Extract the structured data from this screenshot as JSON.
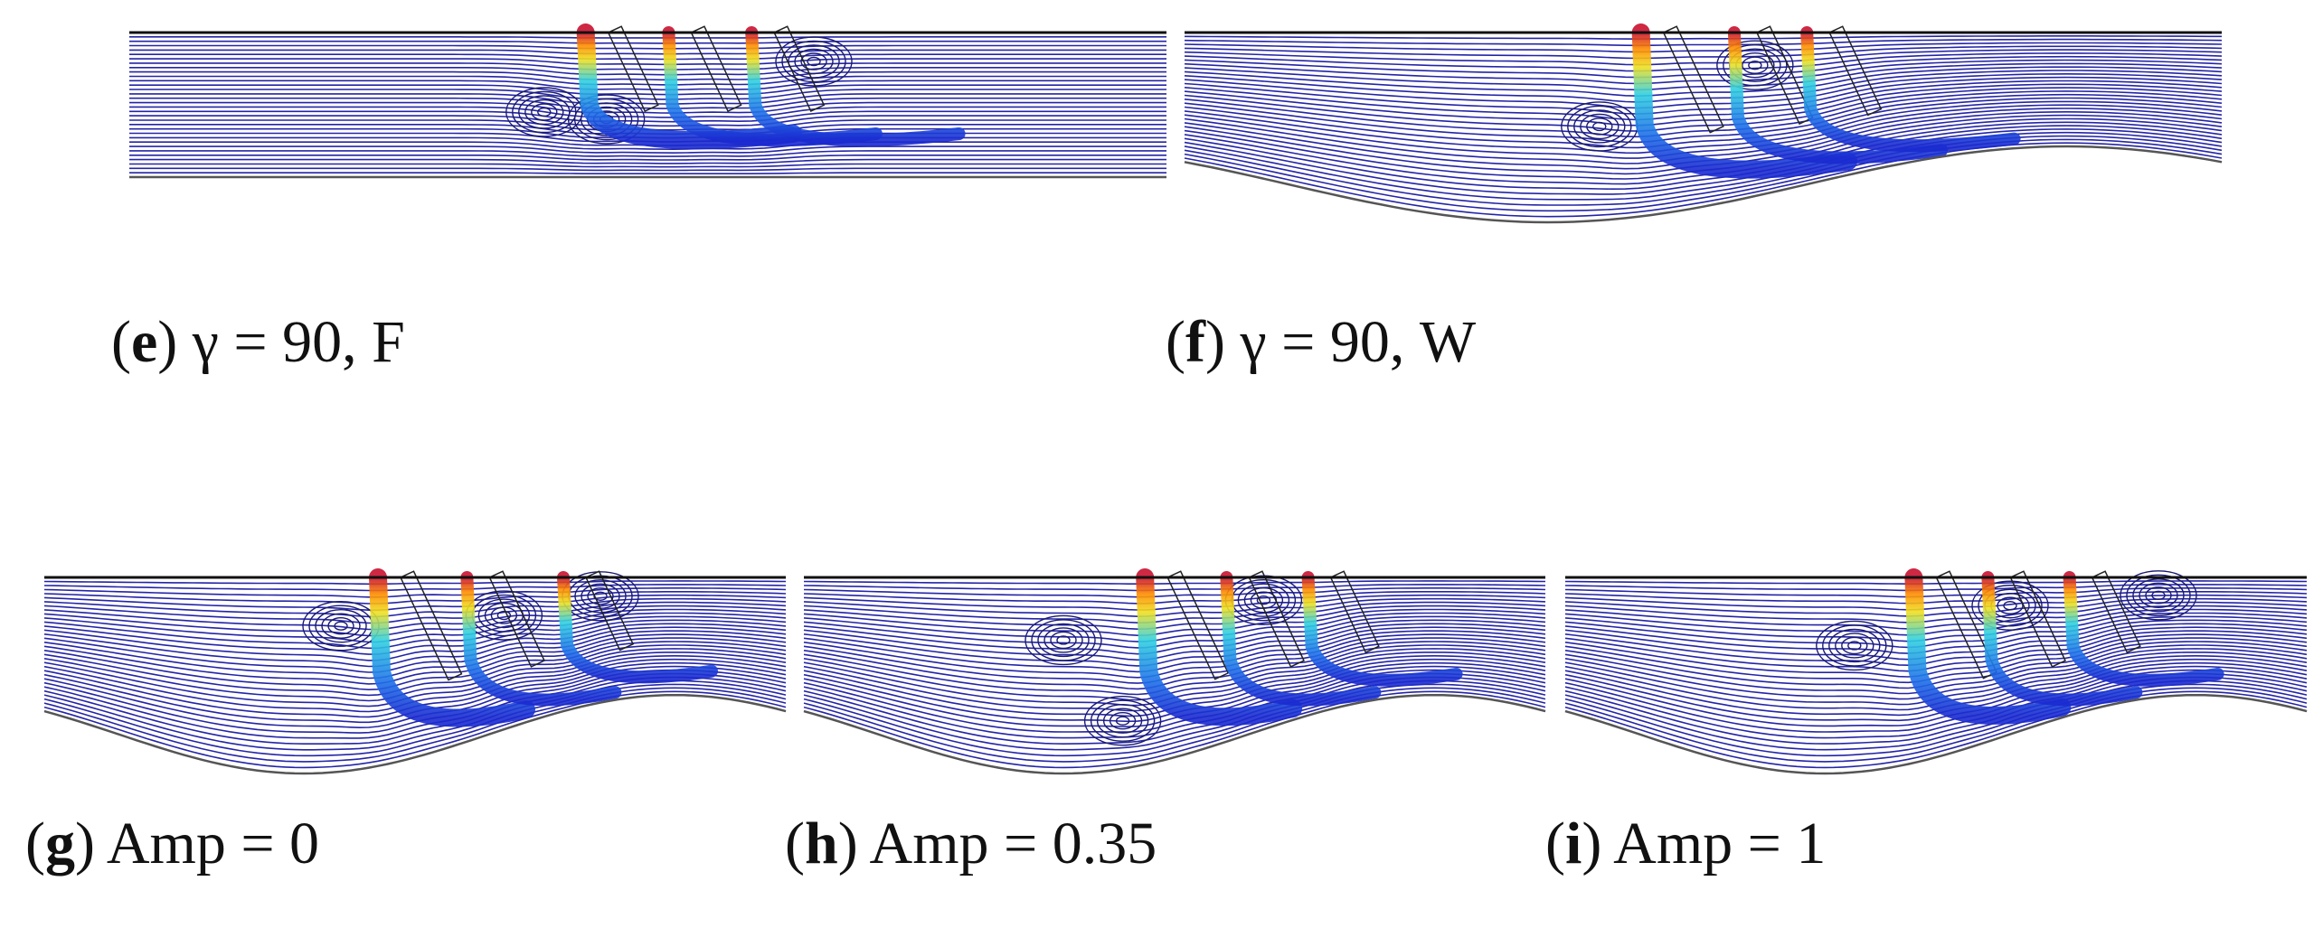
{
  "panels": [
    {
      "caption": [
        "(",
        "e",
        ") γ = 90, F"
      ]
    },
    {
      "caption": [
        "(",
        "f",
        ") γ = 90, W"
      ]
    },
    {
      "caption": [
        "(",
        "g",
        ") Amp = 0"
      ]
    },
    {
      "caption": [
        "(",
        "h",
        ") Amp = 0.35"
      ]
    },
    {
      "caption": [
        "(",
        "i",
        ") Amp = 1"
      ]
    }
  ]
}
